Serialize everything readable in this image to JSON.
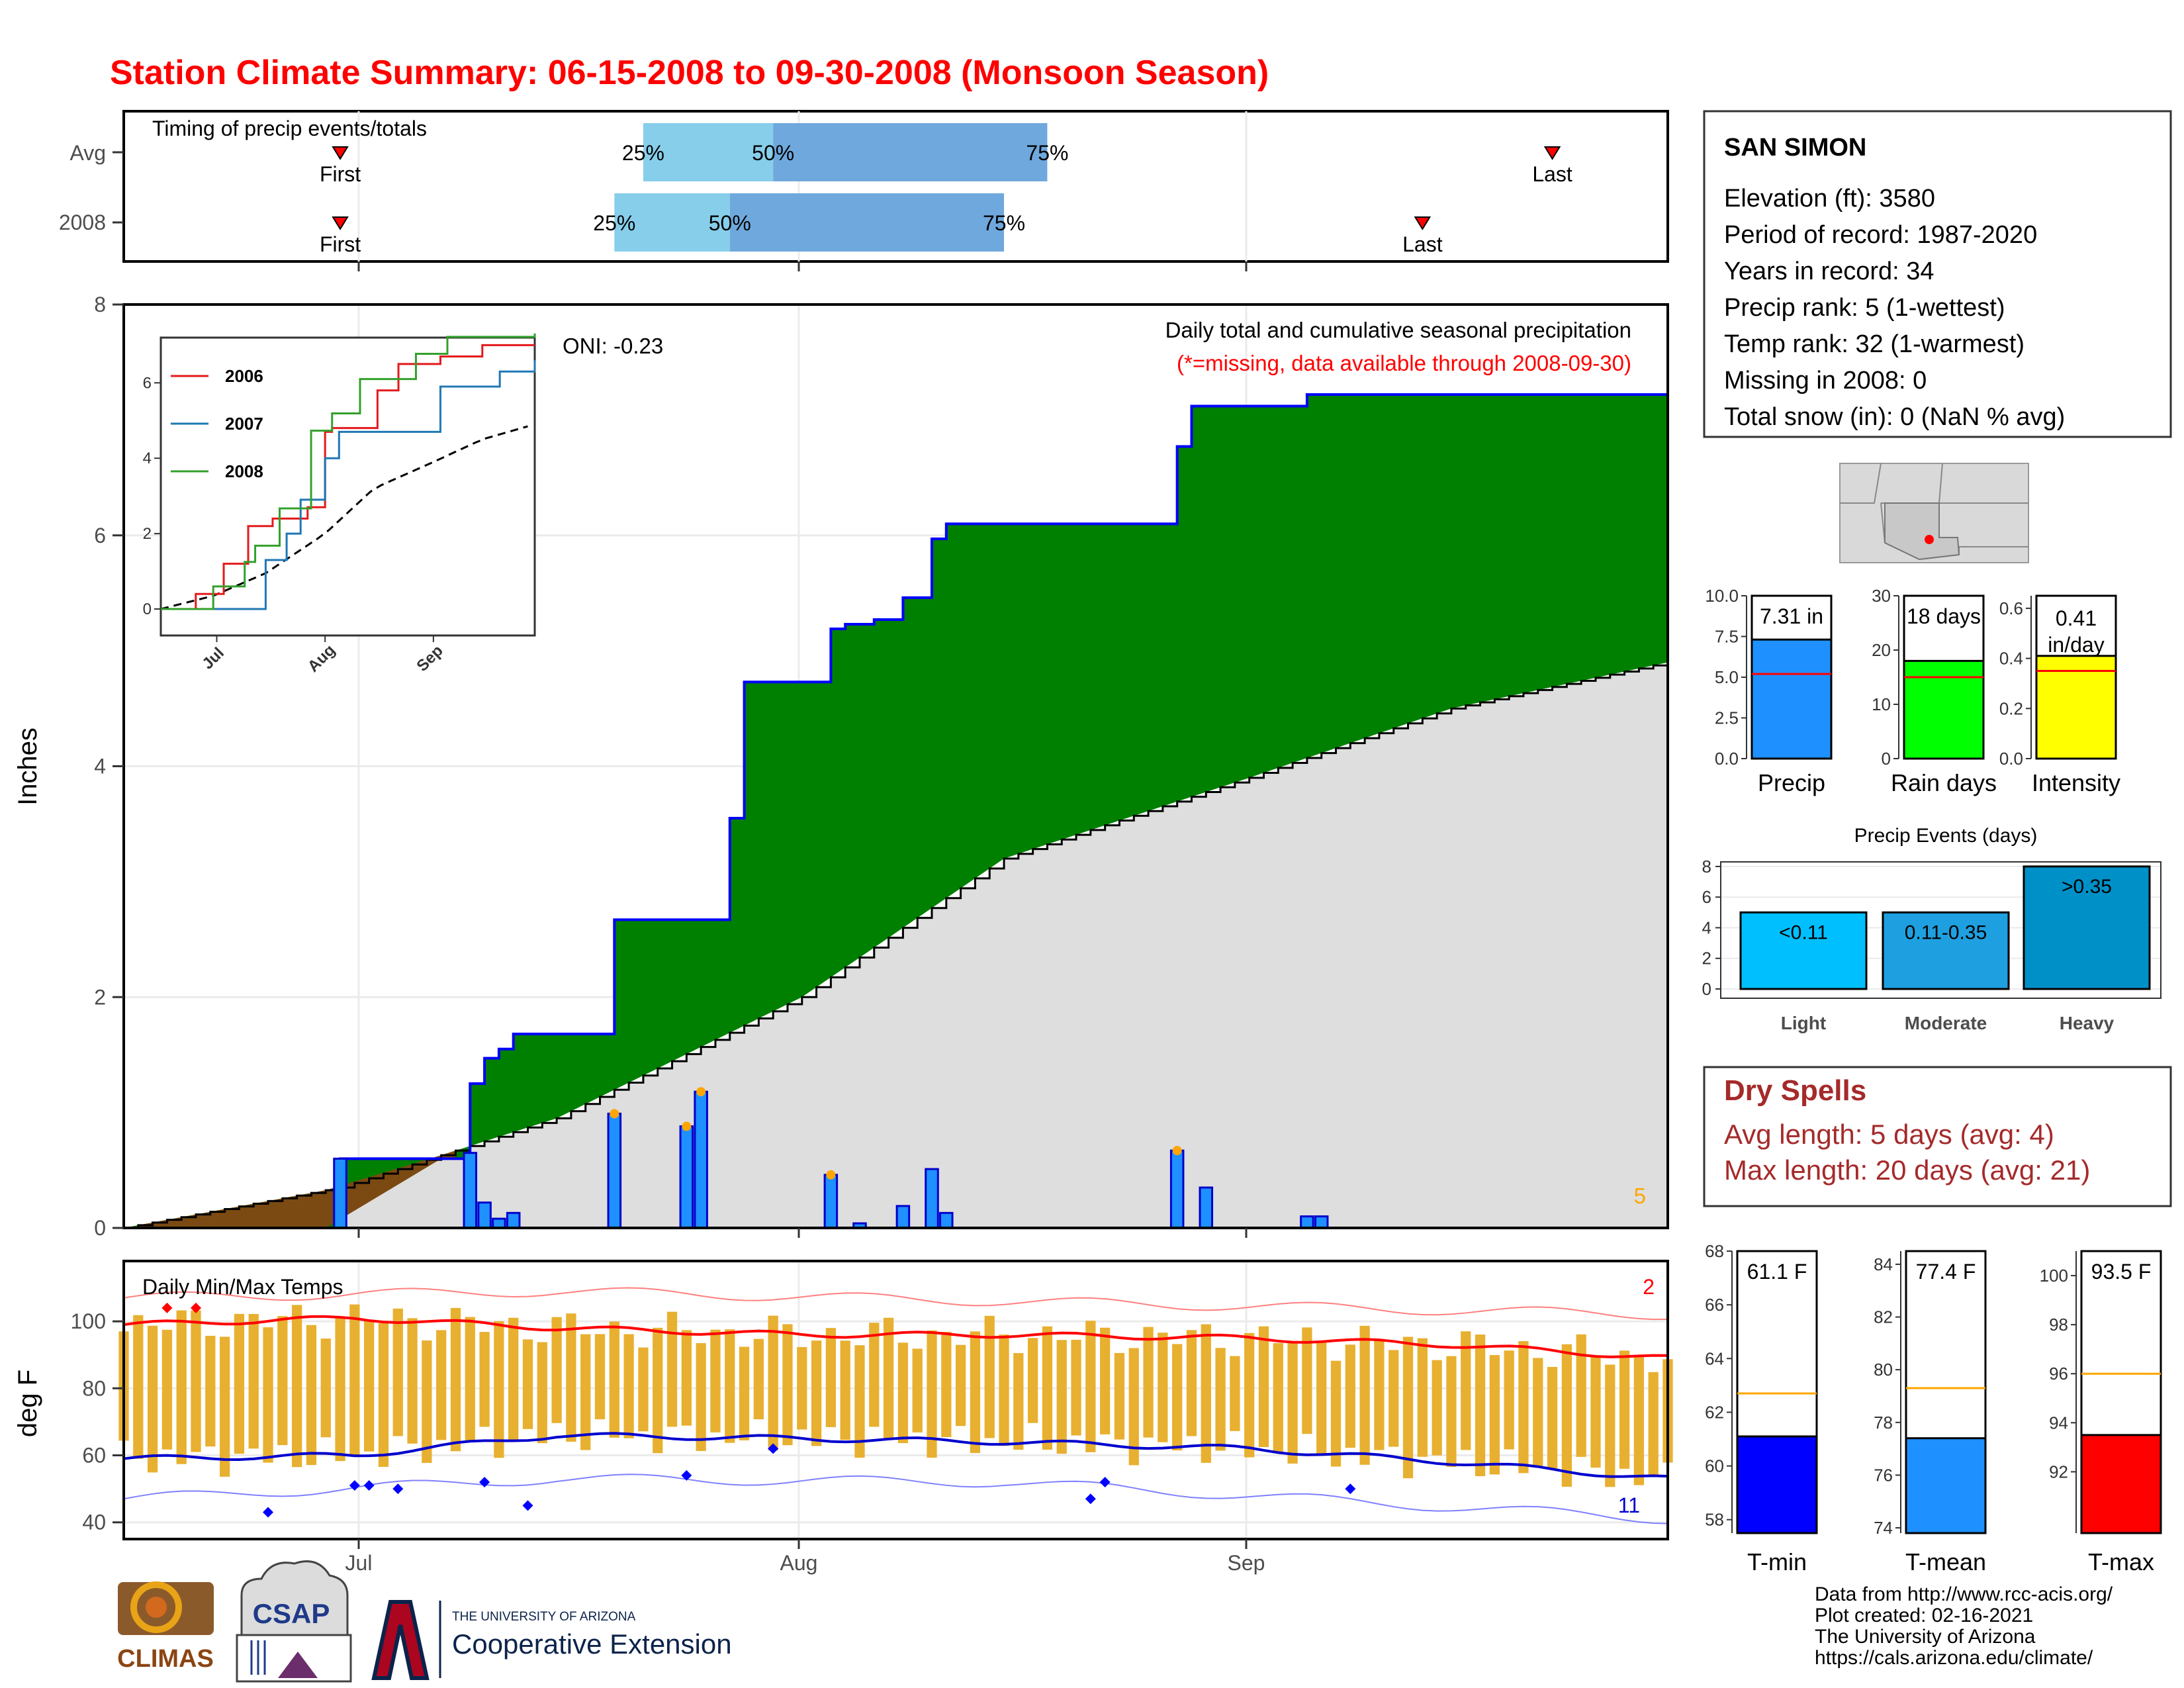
{
  "title": "Station Climate Summary: 06-15-2008 to 09-30-2008 (Monsoon Season)",
  "timing_panel": {
    "label": "Timing of precip events/totals",
    "rows": [
      {
        "name": "Avg",
        "first_label": "First",
        "last_label": "Last",
        "first": "2008-06-30",
        "p25": "2008-07-21",
        "p50": "2008-07-30",
        "p75": "2008-08-18",
        "last": "2008-09-22",
        "p25_label": "25%",
        "p50_label": "50%",
        "p75_label": "75%"
      },
      {
        "name": "2008",
        "first_label": "First",
        "last_label": "Last",
        "first": "2008-06-30",
        "p25": "2008-07-19",
        "p50": "2008-07-27",
        "p75": "2008-08-15",
        "last": "2008-09-13",
        "p25_label": "25%",
        "p50_label": "50%",
        "p75_label": "75%"
      }
    ]
  },
  "station": {
    "name": "SAN SIMON",
    "lines": [
      "Elevation (ft): 3580",
      "Period of record: 1987-2020",
      "Years in record: 34",
      "Precip rank: 5 (1-wettest)",
      "Temp rank: 32 (1-warmest)",
      "Missing in 2008: 0",
      "Total snow (in): 0 (NaN % avg)"
    ]
  },
  "main_chart": {
    "ylabel": "Inches",
    "oni": "ONI: -0.23",
    "caption": "Daily total and cumulative seasonal precipitation",
    "missing_note": "(*=missing, data available through 2008-09-30)",
    "corner_count": "5",
    "ylim": [
      0,
      8
    ],
    "yticks": [
      "0",
      "2",
      "4",
      "6",
      "8"
    ]
  },
  "inset": {
    "legend": [
      {
        "name": "2006",
        "color": "#e31a1c"
      },
      {
        "name": "2007",
        "color": "#1f78b4"
      },
      {
        "name": "2008",
        "color": "#33a02c"
      }
    ],
    "yticks": [
      "0",
      "2",
      "4",
      "6"
    ],
    "xticks": [
      "Jul",
      "Aug",
      "Sep"
    ]
  },
  "temp_chart": {
    "ylabel": "deg F",
    "label": "Daily Min/Max Temps",
    "count_max": "2",
    "count_min": "11",
    "yticks": [
      "40",
      "60",
      "80",
      "100"
    ]
  },
  "xaxis": {
    "ticks": [
      "Jul",
      "Aug",
      "Sep"
    ]
  },
  "summary_bars": [
    {
      "label": "Precip",
      "value": 7.31,
      "text": "7.31 in",
      "avg": 5.2,
      "color": "#1e90ff",
      "ylim": [
        0,
        10
      ],
      "ticks": [
        "0.0",
        "2.5",
        "5.0",
        "7.5",
        "10.0"
      ]
    },
    {
      "label": "Rain days",
      "value": 18,
      "text": "18 days",
      "avg": 15,
      "color": "#00ff00",
      "ylim": [
        0,
        30
      ],
      "ticks": [
        "0",
        "10",
        "20",
        "30"
      ]
    },
    {
      "label": "Intensity",
      "value": 0.41,
      "text": "0.41 in/day",
      "avg": 0.35,
      "color": "#ffff00",
      "ylim": [
        0,
        0.65
      ],
      "ticks": [
        "0.0",
        "0.2",
        "0.4",
        "0.6"
      ]
    }
  ],
  "events": {
    "title": "Precip Events (days)",
    "ticks": [
      "0",
      "2",
      "4",
      "6",
      "8"
    ],
    "bars": [
      {
        "label": "Light",
        "text": "<0.11",
        "value": 5,
        "color": "#00bfff"
      },
      {
        "label": "Moderate",
        "text": "0.11-0.35",
        "value": 5,
        "color": "#1ea0e0"
      },
      {
        "label": "Heavy",
        "text": ">0.35",
        "value": 8,
        "color": "#0090c8"
      }
    ]
  },
  "dry_spells": {
    "title": "Dry Spells",
    "avg_length": "Avg length: 5 days (avg: 4)",
    "max_length": "Max length: 20 days (avg: 21)"
  },
  "temp_bars": [
    {
      "label": "T-min",
      "value": 61.1,
      "text": "61.1 F",
      "avg": 62.7,
      "color": "#0000ff",
      "ylim": [
        57.5,
        68
      ],
      "ticks": [
        "58",
        "60",
        "62",
        "64",
        "66",
        "68"
      ]
    },
    {
      "label": "T-mean",
      "value": 77.4,
      "text": "77.4 F",
      "avg": 79.3,
      "color": "#1e90ff",
      "ylim": [
        73.8,
        84.5
      ],
      "ticks": [
        "74",
        "76",
        "78",
        "80",
        "82",
        "84"
      ]
    },
    {
      "label": "T-max",
      "value": 93.5,
      "text": "93.5 F",
      "avg": 96,
      "color": "#ff0000",
      "ylim": [
        89.5,
        101
      ],
      "ticks": [
        "92",
        "94",
        "96",
        "98",
        "100"
      ]
    }
  ],
  "footer": {
    "lines": [
      "Data from http://www.rcc-acis.org/",
      "Plot created: 02-16-2021",
      "The University of Arizona",
      "https://cals.arizona.edu/climate/"
    ],
    "logo_climas": "CLIMAS",
    "logo_csap": "CSAP",
    "ua_small": "THE UNIVERSITY OF ARIZONA",
    "ua_big": "Cooperative Extension"
  },
  "chart_data": [
    {
      "type": "area",
      "title": "Daily total and cumulative seasonal precipitation",
      "ylabel": "Inches",
      "x_range": [
        "2008-06-15",
        "2008-09-30"
      ],
      "ylim": [
        0,
        8
      ],
      "series": [
        {
          "name": "cumulative precipitation",
          "x": [
            "2008-06-15",
            "2008-06-30",
            "2008-07-09",
            "2008-07-10",
            "2008-07-11",
            "2008-07-12",
            "2008-07-19",
            "2008-07-27",
            "2008-07-28",
            "2008-08-03",
            "2008-08-04",
            "2008-08-06",
            "2008-08-08",
            "2008-08-10",
            "2008-08-11",
            "2008-08-26",
            "2008-08-27",
            "2008-08-28",
            "2008-09-03",
            "2008-09-05",
            "2008-09-30"
          ],
          "values": [
            0,
            0.6,
            1.25,
            1.47,
            1.55,
            1.68,
            2.67,
            3.55,
            4.73,
            5.19,
            5.23,
            5.27,
            5.46,
            5.97,
            6.1,
            6.1,
            6.77,
            7.12,
            7.12,
            7.22,
            7.31
          ]
        },
        {
          "name": "average cumulative precipitation",
          "x": [
            "2008-06-15",
            "2008-06-30",
            "2008-07-15",
            "2008-08-01",
            "2008-08-15",
            "2008-09-01",
            "2008-09-15",
            "2008-09-30"
          ],
          "values": [
            0,
            0.35,
            0.95,
            2.0,
            3.2,
            3.9,
            4.5,
            4.9
          ]
        }
      ],
      "daily_precip": {
        "x": [
          "2008-06-30",
          "2008-07-09",
          "2008-07-10",
          "2008-07-11",
          "2008-07-12",
          "2008-07-19",
          "2008-07-24",
          "2008-07-25",
          "2008-08-03",
          "2008-08-05",
          "2008-08-08",
          "2008-08-10",
          "2008-08-11",
          "2008-08-27",
          "2008-08-29",
          "2008-09-05",
          "2008-09-06"
        ],
        "values": [
          0.6,
          0.65,
          0.22,
          0.08,
          0.13,
          0.99,
          0.88,
          1.18,
          0.46,
          0.04,
          0.19,
          0.51,
          0.13,
          0.67,
          0.35,
          0.1,
          0.1
        ]
      }
    },
    {
      "type": "line",
      "title": "Daily Min/Max Temps",
      "ylabel": "deg F",
      "ylim": [
        35,
        118
      ],
      "x_range": [
        "2008-06-15",
        "2008-09-30"
      ],
      "series": [
        {
          "name": "avg max",
          "x": [
            "2008-06-15",
            "2008-07-01",
            "2008-07-15",
            "2008-08-01",
            "2008-08-15",
            "2008-09-01",
            "2008-09-15",
            "2008-09-30"
          ],
          "values": [
            99,
            101,
            98,
            96,
            96,
            95,
            93,
            89
          ]
        },
        {
          "name": "avg min",
          "x": [
            "2008-06-15",
            "2008-07-01",
            "2008-07-15",
            "2008-08-01",
            "2008-08-15",
            "2008-09-01",
            "2008-09-15",
            "2008-09-30"
          ],
          "values": [
            59,
            60,
            66,
            65,
            64,
            62,
            58,
            53
          ]
        },
        {
          "name": "record max",
          "x": [
            "2008-06-15",
            "2008-07-15",
            "2008-08-15",
            "2008-09-30"
          ],
          "values": [
            107,
            109,
            106,
            102
          ]
        },
        {
          "name": "record min",
          "x": [
            "2008-06-15",
            "2008-07-15",
            "2008-08-15",
            "2008-09-30"
          ],
          "values": [
            47,
            53,
            52,
            41
          ]
        }
      ]
    },
    {
      "type": "bar",
      "categories": [
        "Precip",
        "Rain days",
        "Intensity"
      ],
      "values": [
        7.31,
        18,
        0.41
      ]
    },
    {
      "type": "bar",
      "title": "Precip Events (days)",
      "categories": [
        "Light",
        "Moderate",
        "Heavy"
      ],
      "values": [
        5,
        5,
        8
      ]
    },
    {
      "type": "bar",
      "categories": [
        "T-min",
        "T-mean",
        "T-max"
      ],
      "values": [
        61.1,
        77.4,
        93.5
      ]
    }
  ]
}
